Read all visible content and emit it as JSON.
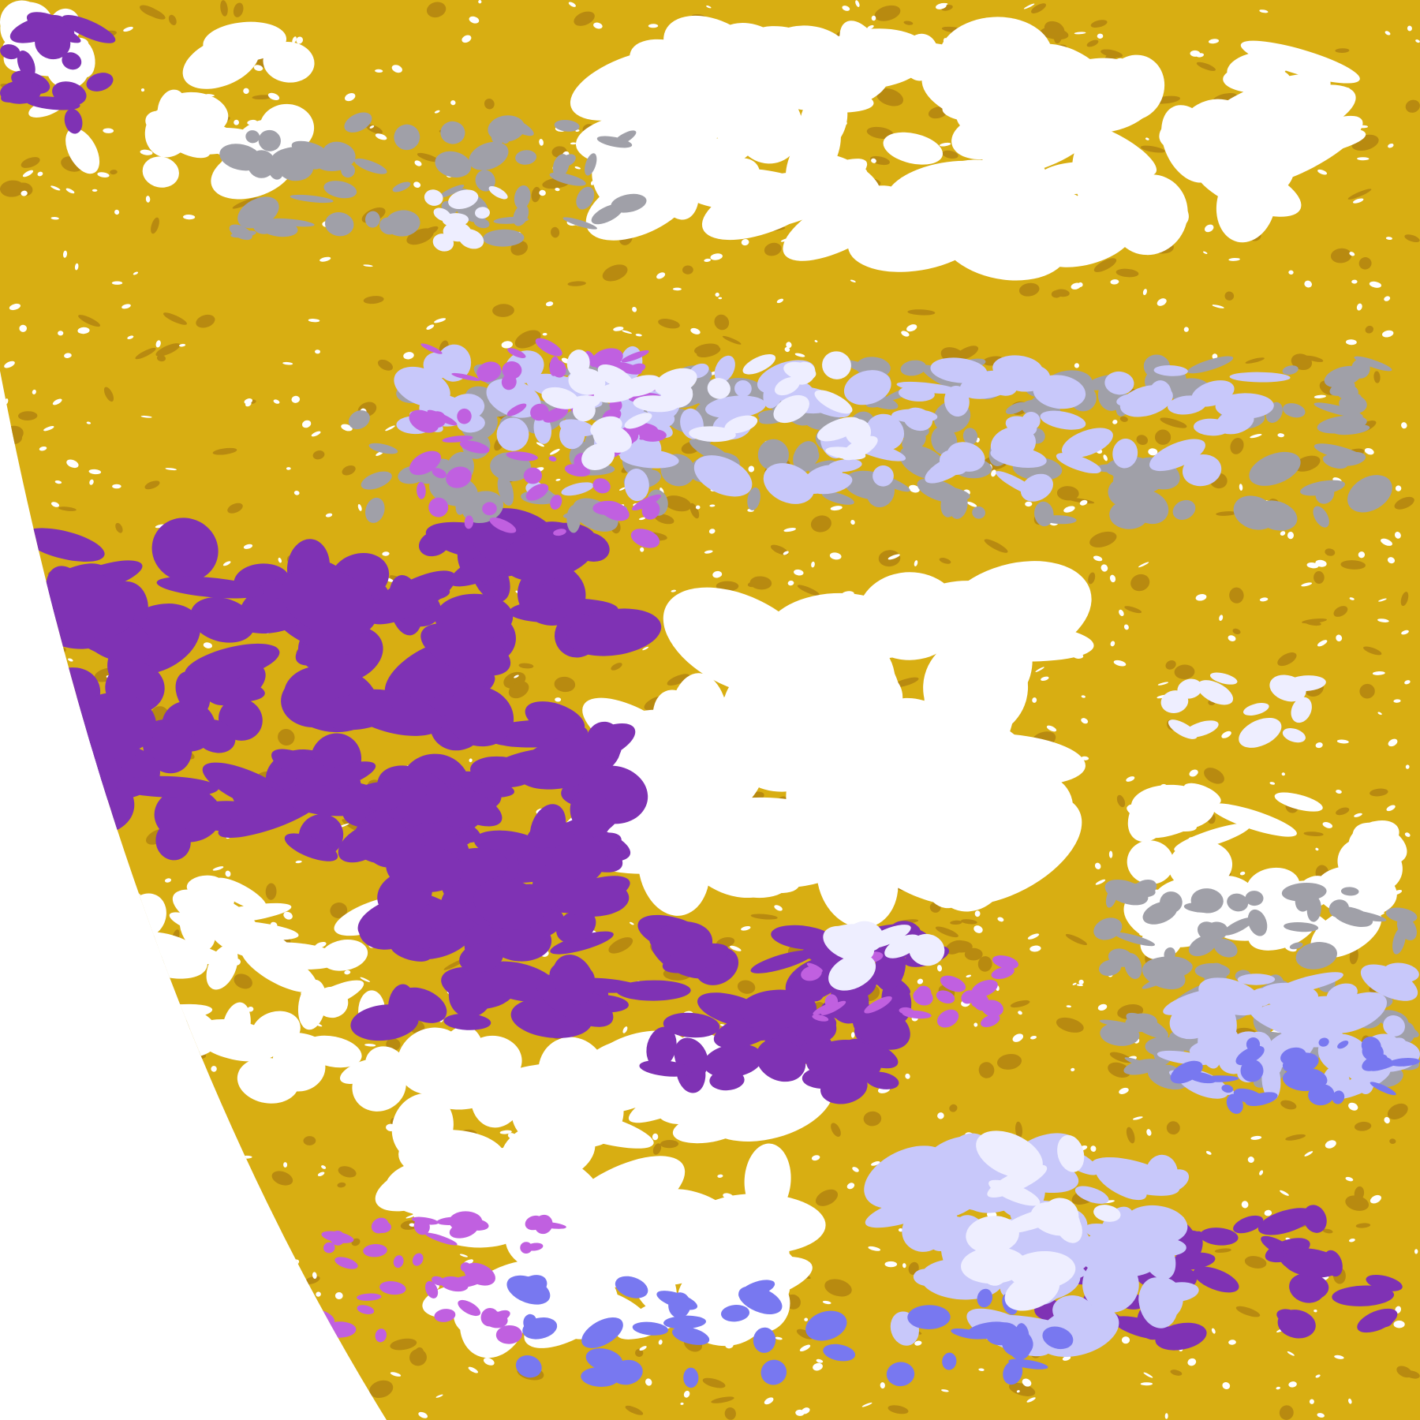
{
  "palette": {
    "background": "#ffffff",
    "gold": "#d8ae12",
    "dark_gold": "#b88a10",
    "purple": "#7f32b4",
    "violet": "#c060e0",
    "periwinkle": "#7878f0",
    "lavender": "#c8c8fa",
    "pale": "#eeeeff",
    "gray": "#a0a0a8",
    "clear": "#ffffff"
  }
}
